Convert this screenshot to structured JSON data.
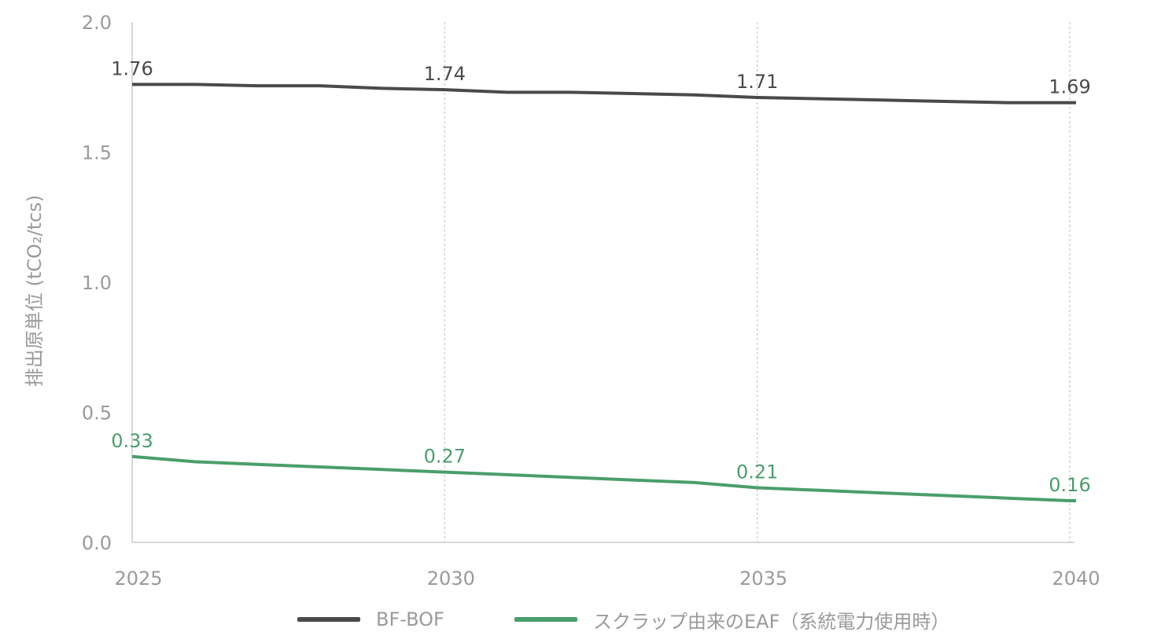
{
  "chart_data": {
    "type": "line",
    "ylabel": "排出原単位 (tCO₂/tcs)",
    "ylim": [
      0,
      2.0
    ],
    "yticks": [
      "0.0",
      "0.5",
      "1.0",
      "1.5",
      "2.0"
    ],
    "xlim": [
      2025,
      2040
    ],
    "xticks": [
      "2025",
      "2030",
      "2035",
      "2040"
    ],
    "grid": "vertical dotted at x ticks",
    "legend": "bottom",
    "x": [
      2025,
      2026,
      2027,
      2028,
      2029,
      2030,
      2031,
      2032,
      2033,
      2034,
      2035,
      2036,
      2037,
      2038,
      2039,
      2040
    ],
    "series": [
      {
        "name": "BF-BOF",
        "color": "#4a4a4a",
        "values": [
          1.76,
          1.76,
          1.755,
          1.755,
          1.745,
          1.74,
          1.73,
          1.73,
          1.725,
          1.72,
          1.71,
          1.705,
          1.7,
          1.695,
          1.69,
          1.69
        ],
        "labels": [
          {
            "x": 2025,
            "text": "1.76"
          },
          {
            "x": 2030,
            "text": "1.74"
          },
          {
            "x": 2035,
            "text": "1.71"
          },
          {
            "x": 2040,
            "text": "1.69"
          }
        ]
      },
      {
        "name": "スクラップ由来のEAF（系統電力使用時）",
        "color": "#4a9e6b",
        "values": [
          0.33,
          0.31,
          0.3,
          0.29,
          0.28,
          0.27,
          0.26,
          0.25,
          0.24,
          0.23,
          0.21,
          0.2,
          0.19,
          0.18,
          0.17,
          0.16
        ],
        "labels": [
          {
            "x": 2025,
            "text": "0.33"
          },
          {
            "x": 2030,
            "text": "0.27"
          },
          {
            "x": 2035,
            "text": "0.21"
          },
          {
            "x": 2040,
            "text": "0.16"
          }
        ]
      }
    ]
  }
}
